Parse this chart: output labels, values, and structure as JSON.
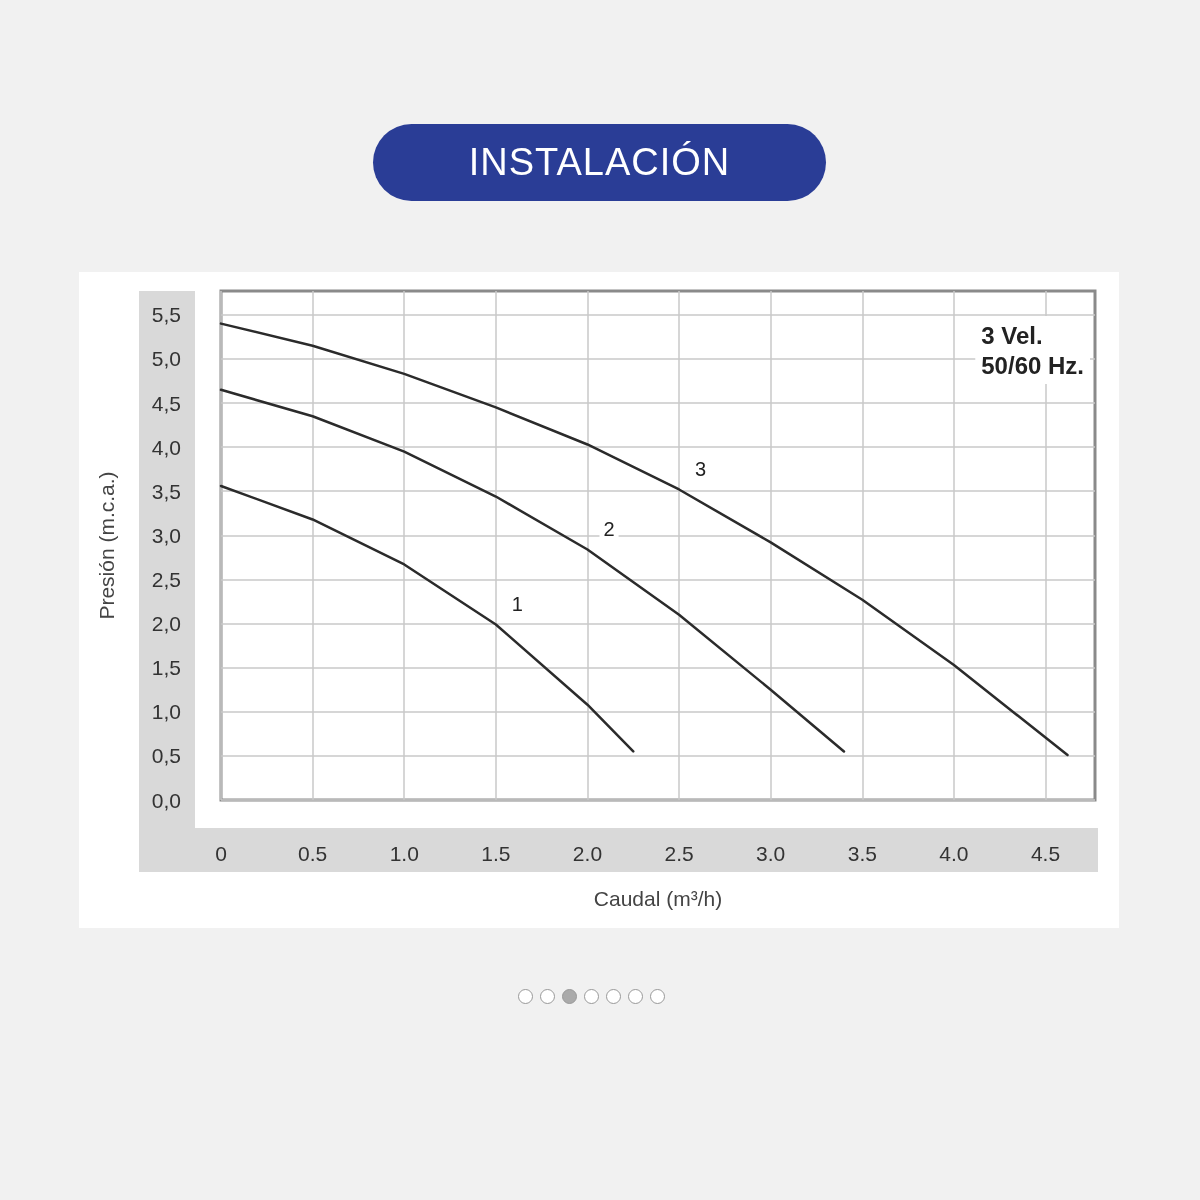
{
  "chart_data": {
    "type": "line",
    "title": "INSTALACIÓN",
    "xlabel": "Caudal (m³/h)",
    "ylabel": "Presión (m.c.a.)",
    "annotations": [
      "3 Vel.",
      "50/60 Hz."
    ],
    "xlim": [
      0,
      4.77
    ],
    "ylim": [
      0,
      5.77
    ],
    "xticks": [
      0,
      0.5,
      {
        "value": 1,
        "label": "1.0"
      },
      1.5,
      {
        "value": 2,
        "label": "2.0"
      },
      2.5,
      {
        "value": 3,
        "label": "3.0"
      },
      3.5,
      {
        "value": 4,
        "label": "4.0"
      },
      4.5
    ],
    "yticks": [
      {
        "value": 0,
        "label": "0,0"
      },
      {
        "value": 0.5,
        "label": "0,5"
      },
      {
        "value": 1,
        "label": "1,0"
      },
      {
        "value": 1.5,
        "label": "1,5"
      },
      {
        "value": 2,
        "label": "2,0"
      },
      {
        "value": 2.5,
        "label": "2,5"
      },
      {
        "value": 3,
        "label": "3,0"
      },
      {
        "value": 3.5,
        "label": "3,5"
      },
      {
        "value": 4,
        "label": "4,0"
      },
      {
        "value": 4.5,
        "label": "4,5"
      },
      {
        "value": 5,
        "label": "5,0"
      },
      {
        "value": 5.5,
        "label": "5,5"
      }
    ],
    "grid": true,
    "marker": "none",
    "line_style": "solid",
    "legend": false,
    "series": [
      {
        "name": "1",
        "color": "#2b2b2b",
        "x": [
          0,
          0.5,
          1,
          1.5,
          2,
          2.25
        ],
        "values": [
          3.56,
          3.18,
          2.67,
          1.99,
          1.08,
          0.55
        ]
      },
      {
        "name": "2",
        "color": "#2b2b2b",
        "x": [
          0,
          0.5,
          1,
          1.5,
          2,
          2.5,
          3,
          3.4
        ],
        "values": [
          4.65,
          4.35,
          3.95,
          3.44,
          2.84,
          2.1,
          1.25,
          0.55
        ]
      },
      {
        "name": "3",
        "color": "#2b2b2b",
        "x": [
          0,
          0.5,
          1,
          1.5,
          2,
          2.5,
          3,
          3.5,
          4,
          4.62
        ],
        "values": [
          5.4,
          5.15,
          4.83,
          4.45,
          4.03,
          3.52,
          2.92,
          2.27,
          1.53,
          0.51
        ]
      }
    ]
  }
}
